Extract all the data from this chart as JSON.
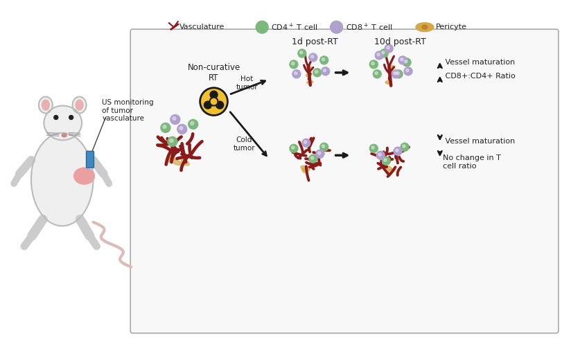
{
  "bg_color": "#ffffff",
  "vessel_color": "#8B1A1A",
  "vessel_fill": "#c0392b",
  "cd4_color": "#7cb87c",
  "cd8_color": "#b0a0cc",
  "pericyte_color": "#d4a84b",
  "text_color": "#222222",
  "us_label": "US monitoring\nof tumor\nvasculature",
  "non_curative_rt_label": "Non-curative\nRT",
  "hot_tumor_label": "Hot\ntumor",
  "cold_tumor_label": "Cold\ntumor",
  "label_1d": "1d post-RT",
  "label_10d": "10d post-RT",
  "hot_result1": " Vessel maturation",
  "hot_result2": " CD8+:CD4+ Ratio",
  "cold_result1": " Vessel maturation",
  "cold_result2": "No change in T\ncell ratio"
}
